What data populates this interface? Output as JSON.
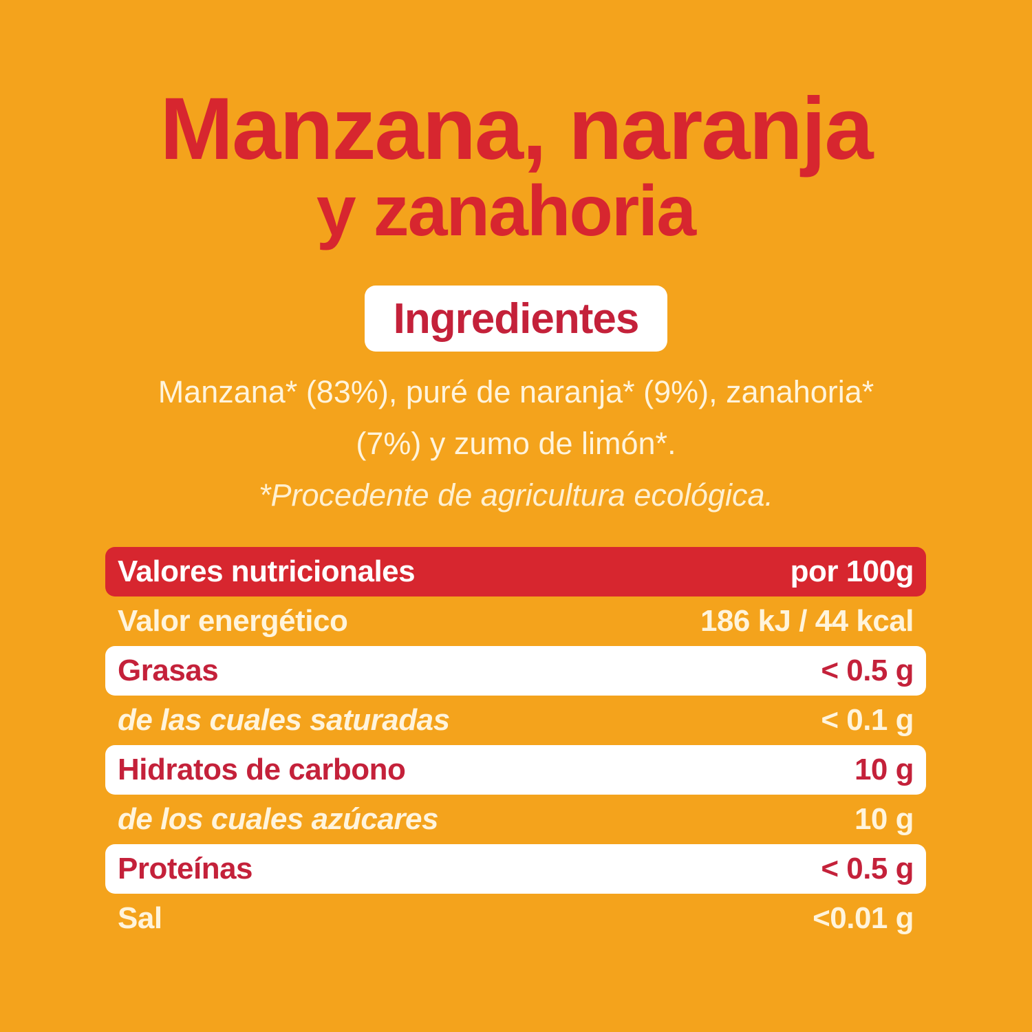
{
  "title": {
    "line1": "Manzana, naranja",
    "line2": "y zanahoria"
  },
  "ingredients": {
    "heading": "Ingredientes",
    "line1": "Manzana* (83%), puré de naranja* (9%), zanahoria*",
    "line2": "(7%) y zumo de limón*.",
    "note": "*Procedente de agricultura ecológica."
  },
  "nutrition": {
    "header": {
      "label": "Valores nutricionales",
      "value": "por 100g"
    },
    "rows": [
      {
        "label": "Valor energético",
        "value": "186 kJ / 44 kcal"
      },
      {
        "label": "Grasas",
        "value": "< 0.5 g"
      },
      {
        "label": "de las cuales saturadas",
        "value": "< 0.1 g"
      },
      {
        "label": "Hidratos de carbono",
        "value": "10 g"
      },
      {
        "label": "de los cuales azúcares",
        "value": "10 g"
      },
      {
        "label": "Proteínas",
        "value": "< 0.5 g"
      },
      {
        "label": "Sal",
        "value": "<0.01 g"
      }
    ]
  },
  "colors": {
    "background": "#F4A31C",
    "red": "#D7262F",
    "white": "#FFFFFF"
  }
}
